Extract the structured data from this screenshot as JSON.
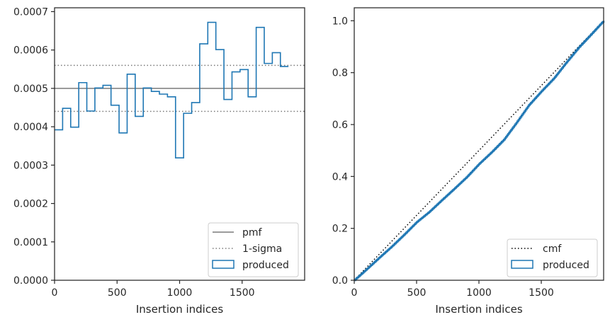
{
  "chart_data": [
    {
      "type": "step-histogram",
      "xlabel": "Insertion indices",
      "ylabel": "",
      "xlim": [
        0,
        2000
      ],
      "ylim": [
        0,
        0.00071
      ],
      "xticks": [
        0,
        500,
        1000,
        1500
      ],
      "xtick_labels": [
        "0",
        "500",
        "1000",
        "1500"
      ],
      "yticks": [
        0,
        0.0001,
        0.0002,
        0.0003,
        0.0004,
        0.0005,
        0.0006,
        0.0007
      ],
      "ytick_labels": [
        "0.0000",
        "0.0001",
        "0.0002",
        "0.0003",
        "0.0004",
        "0.0005",
        "0.0006",
        "0.0007"
      ],
      "pmf": 0.0005,
      "sigma_band": [
        0.00044,
        0.00056
      ],
      "bin_width": 64.5,
      "produced": [
        0.000392,
        0.000448,
        0.000399,
        0.000515,
        0.000441,
        0.000501,
        0.000508,
        0.000456,
        0.000384,
        0.000537,
        0.000427,
        0.000501,
        0.000492,
        0.000485,
        0.000478,
        0.000319,
        0.000435,
        0.000463,
        0.000616,
        0.000672,
        0.000601,
        0.000471,
        0.000543,
        0.000549,
        0.000478,
        0.000659,
        0.000565,
        0.000593,
        0.000557
      ],
      "legend": {
        "placement": "lower right",
        "entries": [
          {
            "label": "pmf",
            "style": "solid",
            "color": "#7a7a7a"
          },
          {
            "label": "1-sigma",
            "style": "dotted",
            "color": "#7a7a7a"
          },
          {
            "label": "produced",
            "style": "patch",
            "color": "#1f77b4"
          }
        ]
      }
    },
    {
      "type": "line",
      "xlabel": "Insertion indices",
      "ylabel": "",
      "xlim": [
        0,
        2000
      ],
      "ylim": [
        0,
        1.05
      ],
      "xticks": [
        0,
        500,
        1000,
        1500
      ],
      "xtick_labels": [
        "0",
        "500",
        "1000",
        "1500"
      ],
      "yticks": [
        0,
        0.2,
        0.4,
        0.6,
        0.8,
        1.0
      ],
      "ytick_labels": [
        "0.0",
        "0.2",
        "0.4",
        "0.6",
        "0.8",
        "1.0"
      ],
      "series": [
        {
          "name": "cmf",
          "style": "dotted",
          "color": "#000000",
          "x": [
            0,
            2000
          ],
          "y": [
            0,
            1.0
          ]
        },
        {
          "name": "produced",
          "style": "step",
          "color": "#1f77b4",
          "x": [
            0,
            100,
            200,
            300,
            400,
            500,
            600,
            700,
            800,
            900,
            1000,
            1100,
            1200,
            1300,
            1400,
            1500,
            1600,
            1700,
            1800,
            1900,
            2000
          ],
          "y": [
            0,
            0.043,
            0.087,
            0.13,
            0.176,
            0.224,
            0.263,
            0.308,
            0.352,
            0.397,
            0.448,
            0.493,
            0.542,
            0.607,
            0.675,
            0.728,
            0.778,
            0.839,
            0.897,
            0.948,
            1.0
          ]
        }
      ],
      "legend": {
        "placement": "lower right",
        "entries": [
          {
            "label": "cmf",
            "style": "dotted",
            "color": "#000000"
          },
          {
            "label": "produced",
            "style": "patch",
            "color": "#1f77b4"
          }
        ]
      }
    }
  ]
}
